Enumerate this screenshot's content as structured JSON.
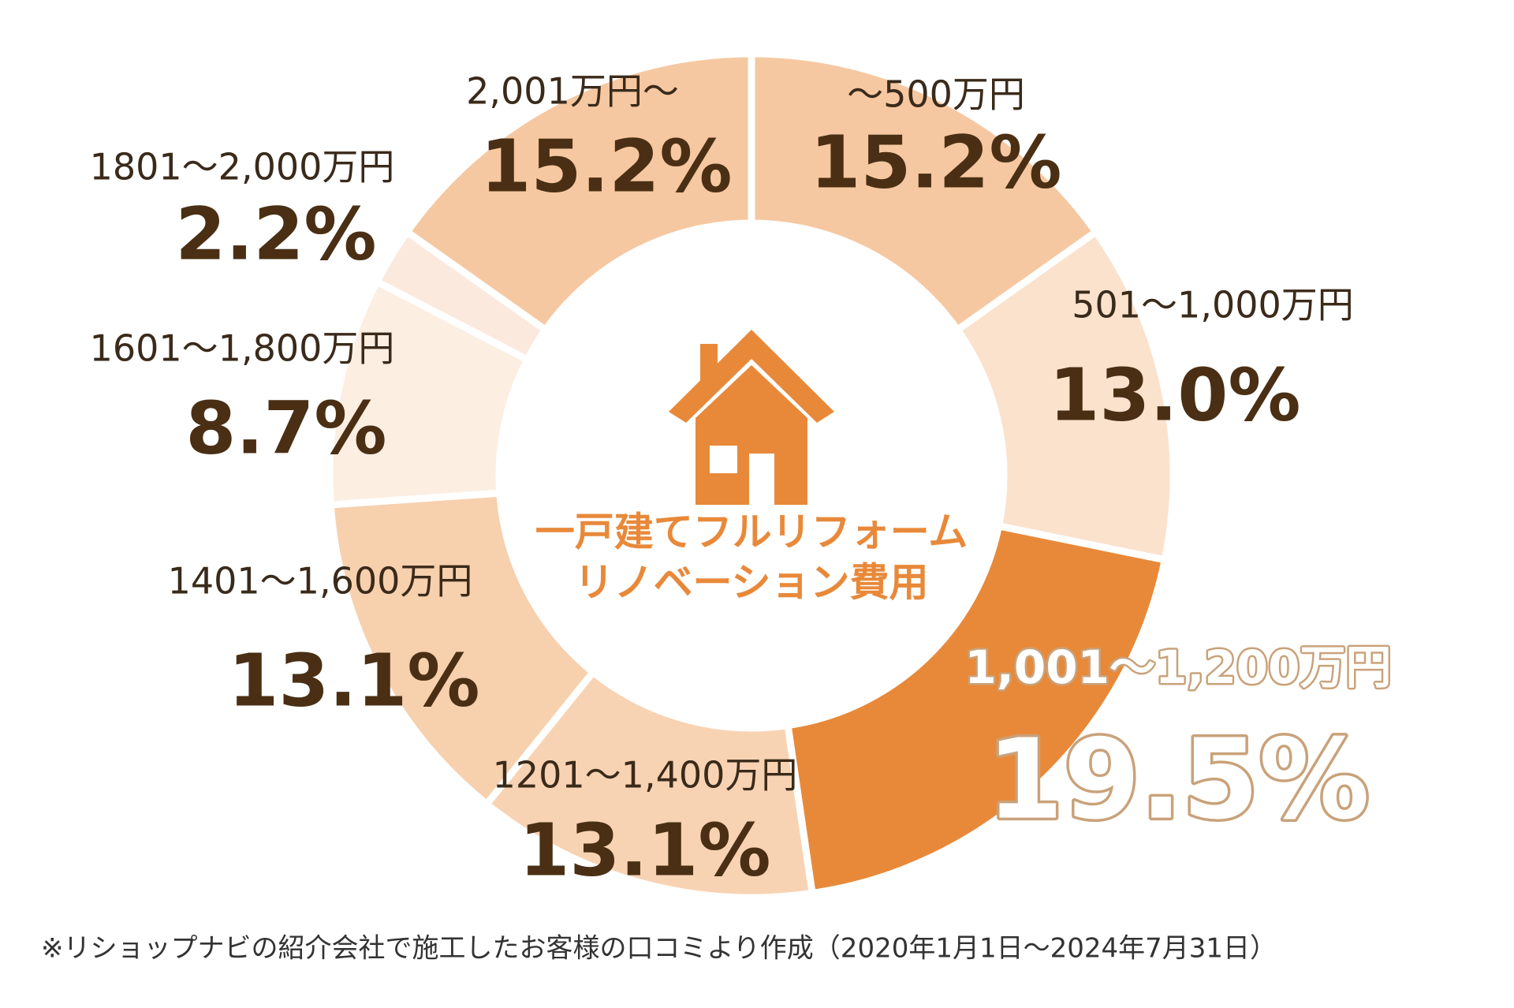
{
  "chart_data": {
    "type": "pie",
    "title": [
      "一戸建てフルリフォーム",
      "リノベーション費用"
    ],
    "categories": [
      "～500万円",
      "501～1,000万円",
      "1,001～1,200万円",
      "1201～1,400万円",
      "1401～1,600万円",
      "1601～1,800万円",
      "1801～2,000万円",
      "2,001万円～"
    ],
    "values": [
      15.2,
      13.0,
      19.5,
      13.1,
      13.1,
      8.7,
      2.2,
      15.2
    ],
    "value_labels": [
      "15.2%",
      "13.0%",
      "19.5%",
      "13.1%",
      "13.1%",
      "8.7%",
      "2.2%",
      "15.2%"
    ],
    "colors": [
      "#f6c8a1",
      "#fbe2cd",
      "#e8893a",
      "#f8d3b3",
      "#f7d0ae",
      "#fdeee2",
      "#fce9de",
      "#f6c8a1"
    ],
    "note": "※リショップナビの紹介会社で施工したお客様の口コミより作成（2020年1月1日～2024年7月31日）"
  }
}
